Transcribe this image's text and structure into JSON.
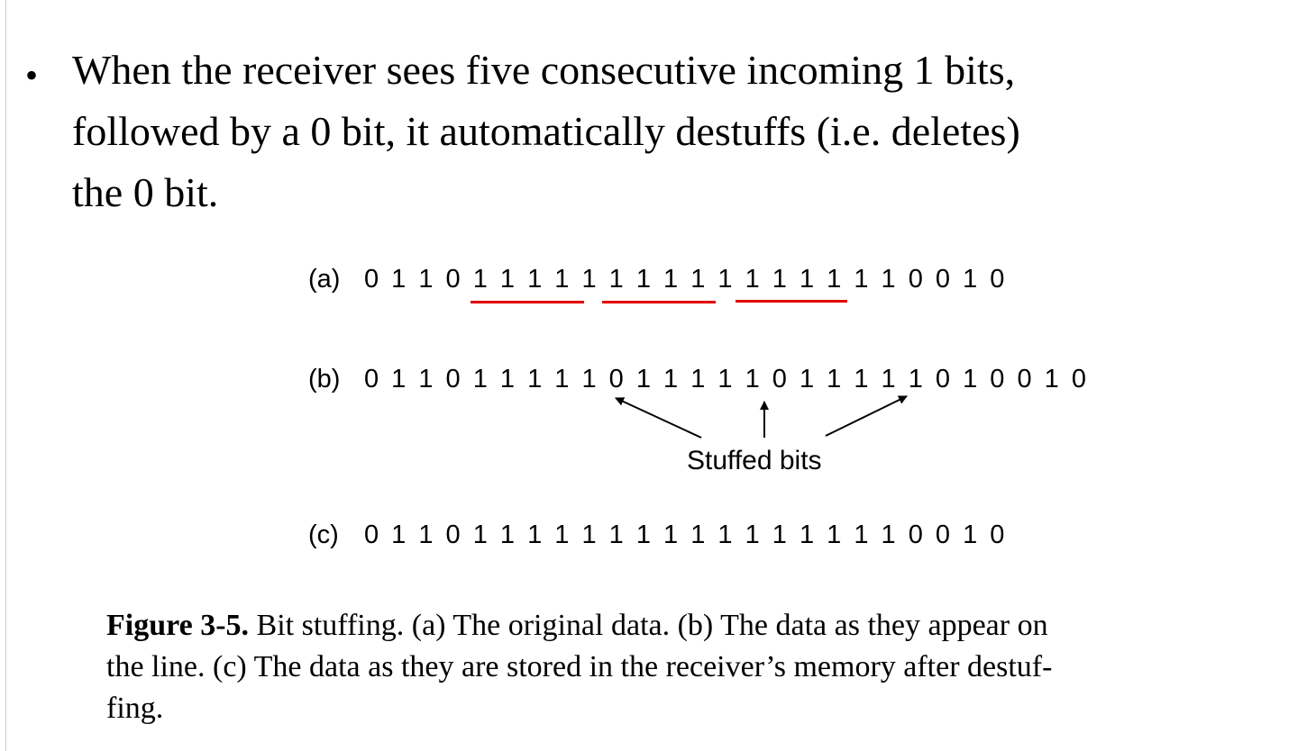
{
  "bullet": {
    "symbol": "•",
    "lines": [
      "When the receiver sees five consecutive incoming 1 bits,",
      "followed by a 0 bit, it automatically destuffs (i.e. deletes)",
      "the 0 bit."
    ]
  },
  "figure": {
    "rows": [
      {
        "label": "(a)",
        "bits": "0 1 1 0 1 1 1 1 1 1 1 1 1 1 1 1 1 1 1 1 0 0 1 0"
      },
      {
        "label": "(b)",
        "bits": "0 1 1 0 1 1 1 1 1 0 1 1 1 1 1 0 1 1 1 1 1 0 1 0 0 1 0"
      },
      {
        "label": "(c)",
        "bits": "0 1 1 0 1 1 1 1 1 1 1 1 1 1 1 1 1 1 1 1 0 0 1 0"
      }
    ],
    "stuffed_label": "Stuffed bits",
    "underline_color": "#e00000"
  },
  "caption": {
    "figure_number": "Figure 3-5.",
    "line1_rest": "Bit stuffing.  (a) The original data.  (b) The data as they appear on",
    "line2": "the line.  (c) The data as they are stored in the receiver’s memory after destuf-",
    "line3": "fing."
  }
}
